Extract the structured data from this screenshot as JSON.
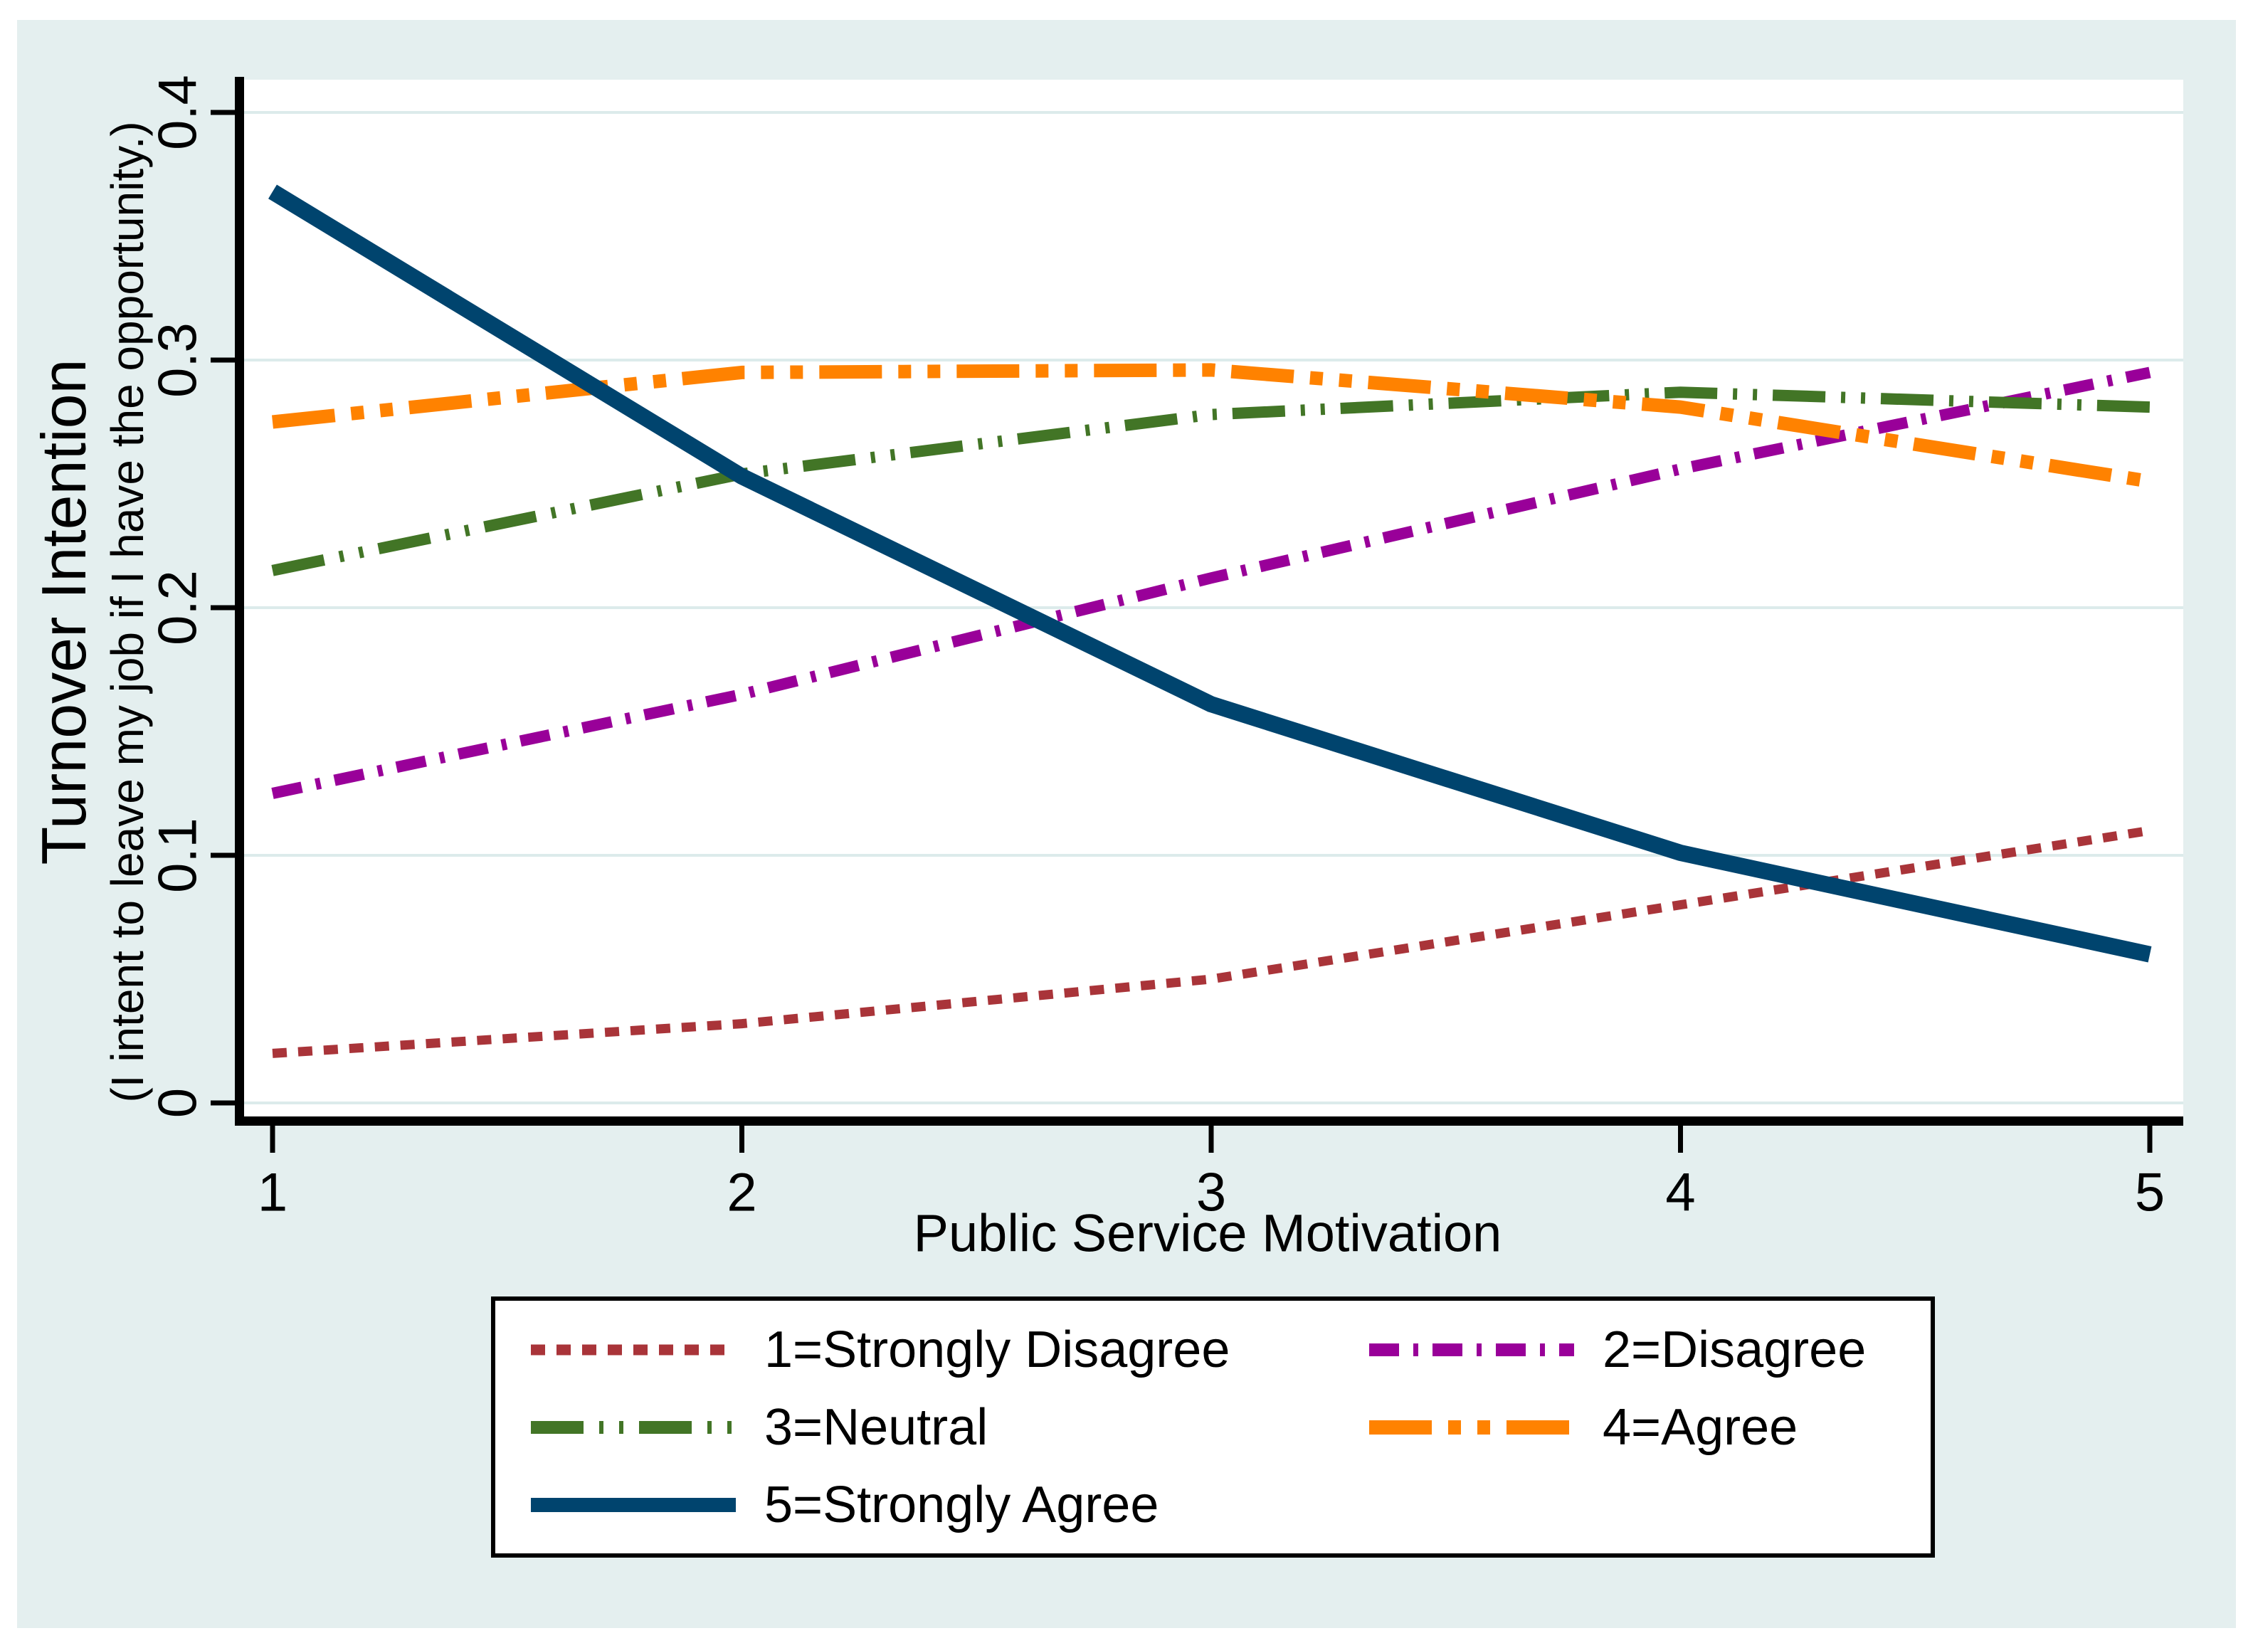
{
  "figure": {
    "background": "#e4efef",
    "plot_background": "#ffffff",
    "grid_color": "#dcebeb",
    "axis_color": "#000000",
    "legend_background": "#ffffff",
    "legend_border": "#000000",
    "text_color": "#000000"
  },
  "chart_data": {
    "type": "line",
    "title": "",
    "xlabel": "Public Service Motivation",
    "ylabel": "Turnover Intention",
    "ylabel_sub": "(I intent to leave my job if I have the opportunity.)",
    "xlim": [
      1,
      5
    ],
    "ylim": [
      0,
      0.4
    ],
    "grid": "horizontal",
    "legend_position": "below",
    "x": [
      1,
      2,
      3,
      4,
      5
    ],
    "x_tick_labels": [
      "1",
      "2",
      "3",
      "4",
      "5"
    ],
    "y_tick_values": [
      0,
      0.1,
      0.2,
      0.3,
      0.4
    ],
    "y_tick_labels": [
      "0",
      "0.1",
      "0.2",
      "0.3",
      "0.4"
    ],
    "series": [
      {
        "label": "1=Strongly Disagree",
        "color": "#a93439",
        "dash": "20 16",
        "width": 13,
        "values": [
          0.02,
          0.032,
          0.05,
          0.08,
          0.11
        ]
      },
      {
        "label": "2=Disagree",
        "color": "#990099",
        "dash": "42 20 7 20",
        "width": 16,
        "values": [
          0.125,
          0.165,
          0.212,
          0.256,
          0.295
        ]
      },
      {
        "label": "3=Neutral",
        "color": "#427526",
        "dash": "74 22 6 22 6 22",
        "width": 16,
        "values": [
          0.215,
          0.254,
          0.278,
          0.287,
          0.281
        ]
      },
      {
        "label": "4=Agree",
        "color": "#ff8200",
        "dash": "88 23 18 23 18 23",
        "width": 19,
        "values": [
          0.275,
          0.295,
          0.296,
          0.281,
          0.251
        ]
      },
      {
        "label": "5=Strongly Agree",
        "color": "#00446e",
        "dash": "",
        "width": 23,
        "values": [
          0.368,
          0.253,
          0.161,
          0.101,
          0.06
        ]
      }
    ]
  }
}
